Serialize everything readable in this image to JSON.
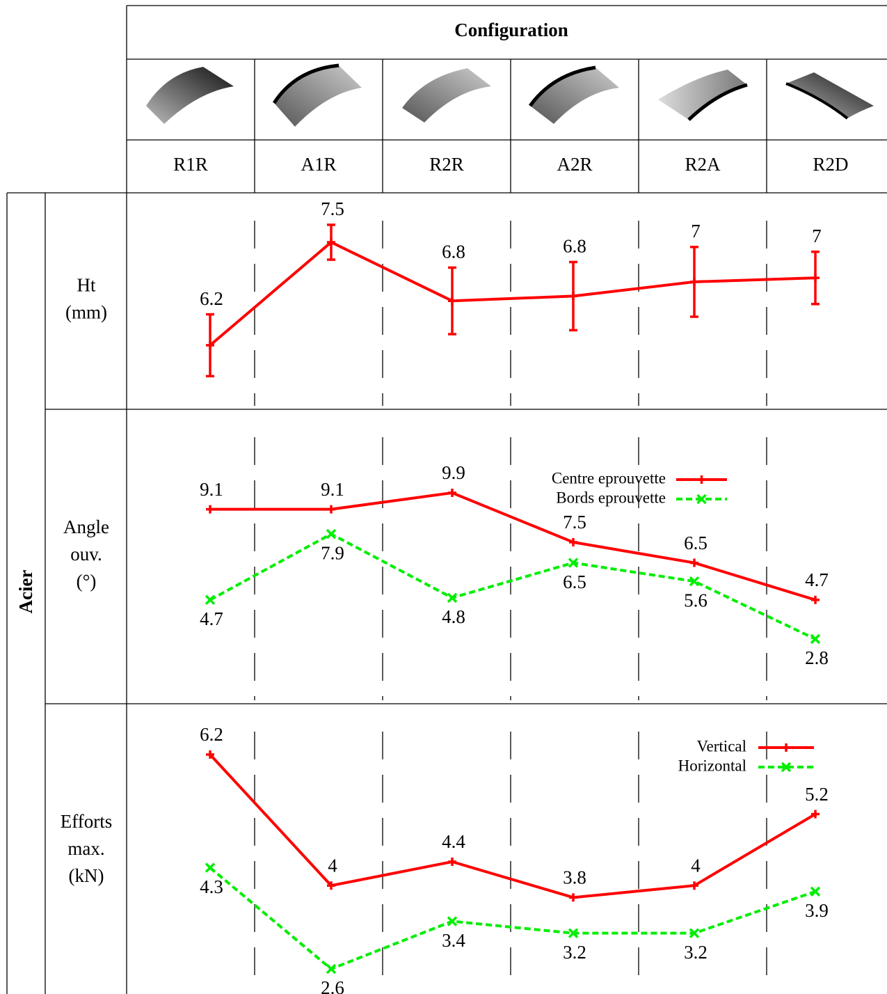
{
  "table": {
    "header": "Configuration",
    "columns": [
      "R1R",
      "A1R",
      "R2R",
      "A2R",
      "R2A",
      "R2D"
    ],
    "group": "Acier"
  },
  "chart_data": [
    {
      "type": "line",
      "title": [
        "Ht",
        "(mm)"
      ],
      "categories": [
        "R1R",
        "A1R",
        "R2R",
        "A2R",
        "R2A",
        "R2D"
      ],
      "values": [
        6.2,
        7.5,
        6.76,
        6.82,
        7,
        7.05
      ],
      "value_labels": [
        "6.2",
        "7.5",
        "6.8",
        "6.8",
        "7",
        "7"
      ],
      "errors": [
        0.39,
        0.22,
        0.42,
        0.43,
        0.44,
        0.33
      ],
      "color": "#ff0000"
    },
    {
      "type": "line",
      "title": [
        "Angle",
        "ouv.",
        "(°)"
      ],
      "categories": [
        "R1R",
        "A1R",
        "R2R",
        "A2R",
        "R2A",
        "R2D"
      ],
      "series": [
        {
          "name": "Centre eprouvette",
          "color": "#ff0000",
          "values": [
            9.1,
            9.1,
            9.9,
            7.5,
            6.5,
            4.7
          ]
        },
        {
          "name": "Bords eprouvette",
          "color": "#00ee00",
          "values": [
            4.7,
            7.9,
            4.8,
            6.5,
            5.6,
            2.8
          ]
        }
      ]
    },
    {
      "type": "line",
      "title": [
        "Efforts",
        "max.",
        "(kN)"
      ],
      "categories": [
        "R1R",
        "A1R",
        "R2R",
        "A2R",
        "R2A",
        "R2D"
      ],
      "series": [
        {
          "name": "Vertical",
          "color": "#ff0000",
          "values": [
            6.2,
            4,
            4.4,
            3.8,
            4,
            5.2
          ]
        },
        {
          "name": "Horizontal",
          "color": "#00ee00",
          "values": [
            4.3,
            2.6,
            3.4,
            3.2,
            3.2,
            3.9
          ]
        }
      ]
    }
  ]
}
